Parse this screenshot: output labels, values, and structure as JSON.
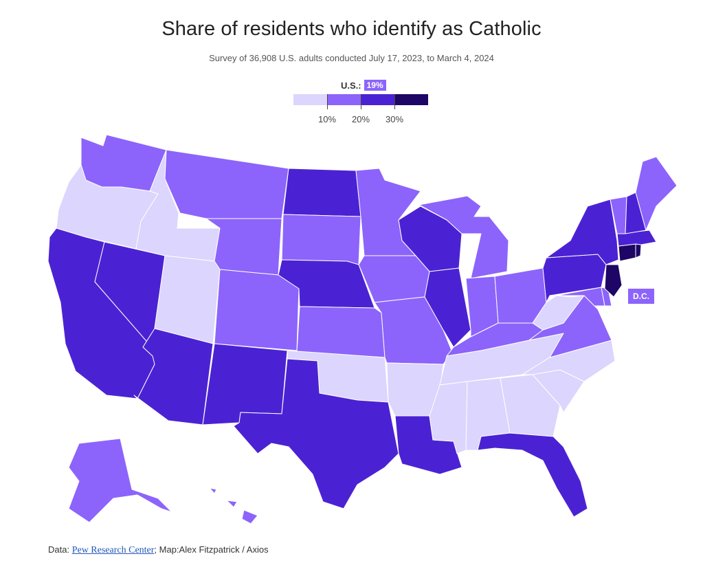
{
  "title": "Share of residents who identify as Catholic",
  "subtitle": "Survey of 36,908 U.S. adults conducted July 17, 2023, to March 4, 2024",
  "legend": {
    "us_label": "U.S.:",
    "us_value": "19%",
    "ticks": [
      "10%",
      "20%",
      "30%"
    ],
    "colors": [
      "#dcd5fd",
      "#8c64fb",
      "#4b22d3",
      "#1d0666"
    ]
  },
  "dc_label": "D.C.",
  "credit": {
    "prefix": "Data: ",
    "source": "Pew Research Center",
    "suffix": "; Map:Alex Fitzpatrick / Axios"
  }
}
